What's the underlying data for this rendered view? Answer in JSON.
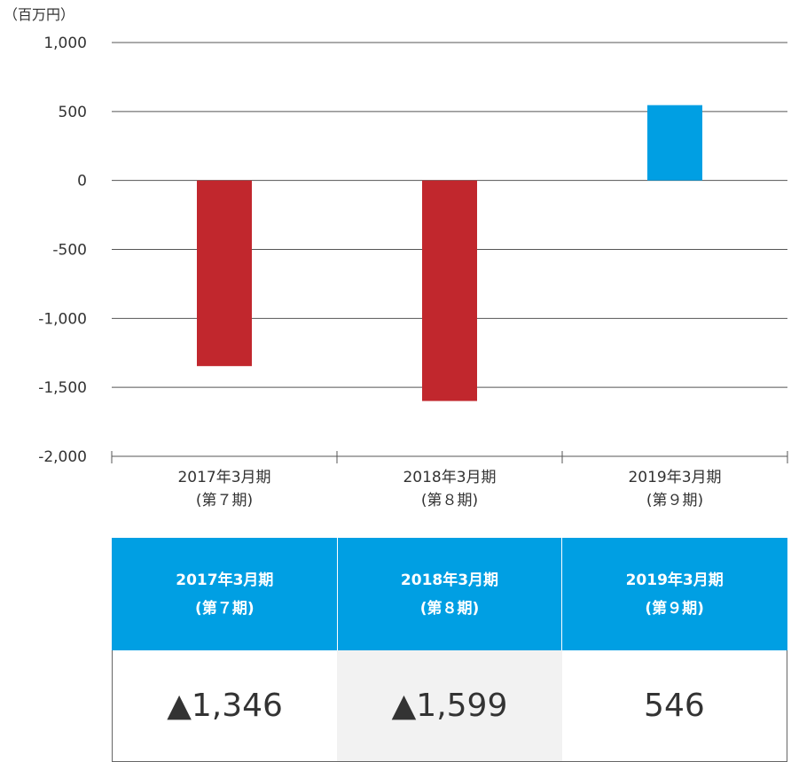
{
  "chart_data": {
    "type": "bar",
    "unit_label": "（百万円）",
    "categories": [
      {
        "line1": "2017年3月期",
        "line2": "(第７期)"
      },
      {
        "line1": "2018年3月期",
        "line2": "(第８期)"
      },
      {
        "line1": "2019年3月期",
        "line2": "(第９期)"
      }
    ],
    "values": [
      -1346,
      -1599,
      546
    ],
    "ylim": [
      -2000,
      1000
    ],
    "yticks": [
      1000,
      500,
      0,
      -500,
      -1000,
      -1500,
      -2000
    ],
    "ytick_labels": [
      "1,000",
      "500",
      "0",
      "-500",
      "-1,000",
      "-1,500",
      "-2,000"
    ],
    "grid": true
  },
  "colors": {
    "negative": "#c1272d",
    "positive": "#009fe3",
    "header_bg": "#009fe3",
    "grid": "#555555"
  },
  "table": {
    "headers": [
      {
        "line1": "2017年3月期",
        "line2": "(第７期)"
      },
      {
        "line1": "2018年3月期",
        "line2": "(第８期)"
      },
      {
        "line1": "2019年3月期",
        "line2": "(第９期)"
      }
    ],
    "values": [
      "▲1,346",
      "▲1,599",
      "546"
    ]
  }
}
